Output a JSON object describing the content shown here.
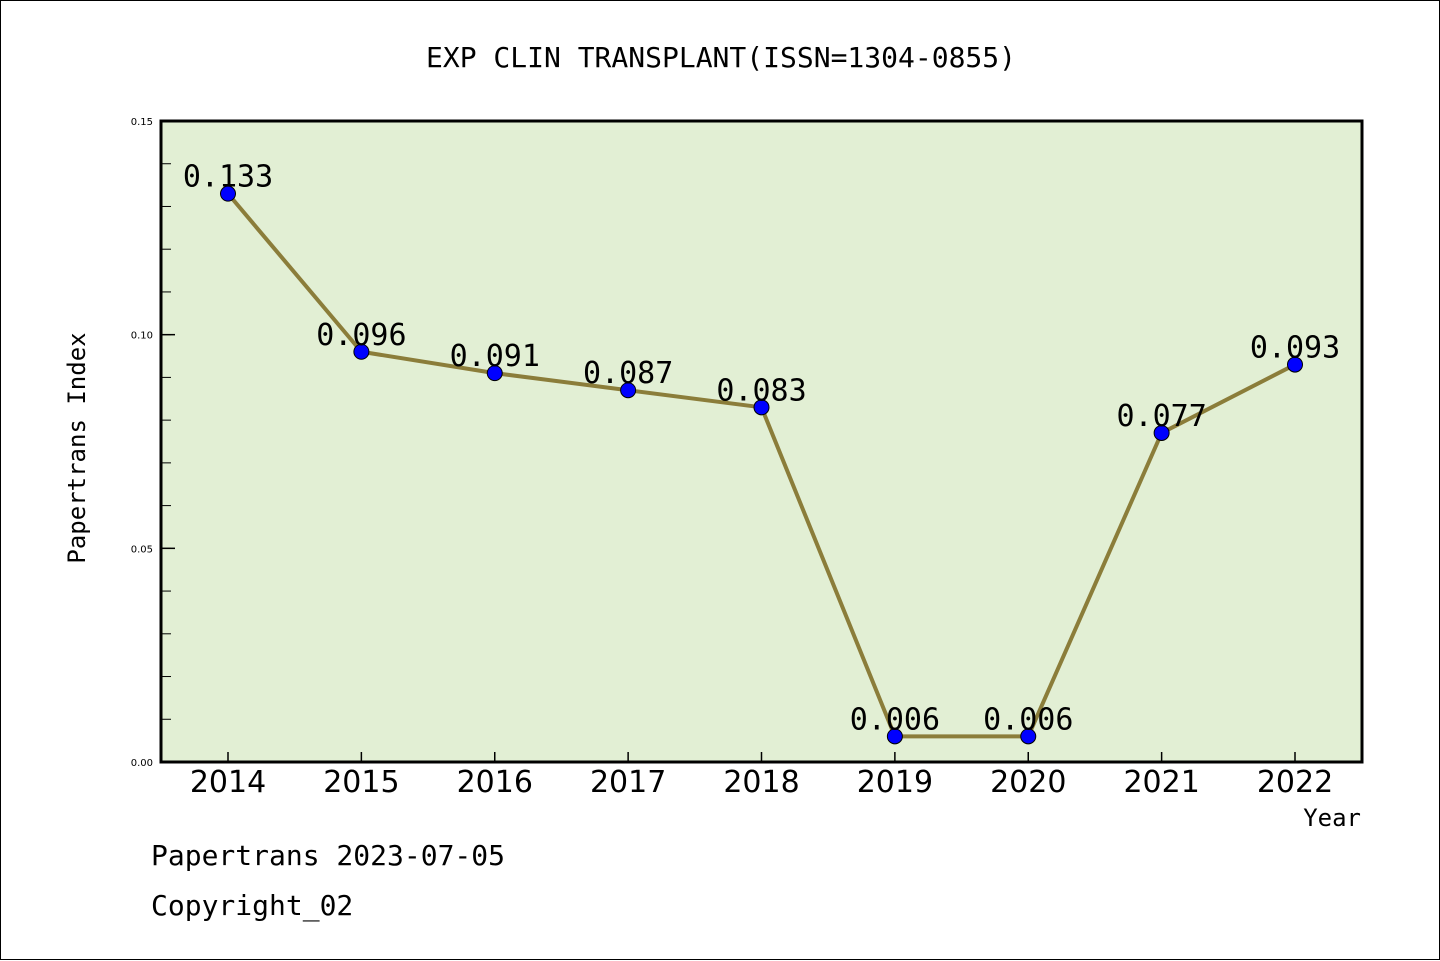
{
  "chart_data": {
    "type": "line",
    "title": "EXP CLIN TRANSPLANT(ISSN=1304-0855)",
    "xlabel": "Year",
    "ylabel": "Papertrans Index",
    "categories": [
      "2014",
      "2015",
      "2016",
      "2017",
      "2018",
      "2019",
      "2020",
      "2021",
      "2022"
    ],
    "values": [
      0.133,
      0.096,
      0.091,
      0.087,
      0.083,
      0.006,
      0.006,
      0.077,
      0.093
    ],
    "data_labels": [
      "0.133",
      "0.096",
      "0.091",
      "0.087",
      "0.083",
      "0.006",
      "0.006",
      "0.077",
      "0.093"
    ],
    "ylim": [
      0,
      0.15
    ],
    "yticks": [
      0.0,
      0.05,
      0.1,
      0.15
    ],
    "ytick_labels": [
      "0.00",
      "0.05",
      "0.10",
      "0.15"
    ],
    "grid": false,
    "colors": {
      "plot_background": "#e2efd4",
      "line": "#8b7d3a",
      "marker": "#0000ff"
    }
  },
  "footer": {
    "source": "Papertrans 2023-07-05",
    "copyright": "Copyright_02"
  }
}
